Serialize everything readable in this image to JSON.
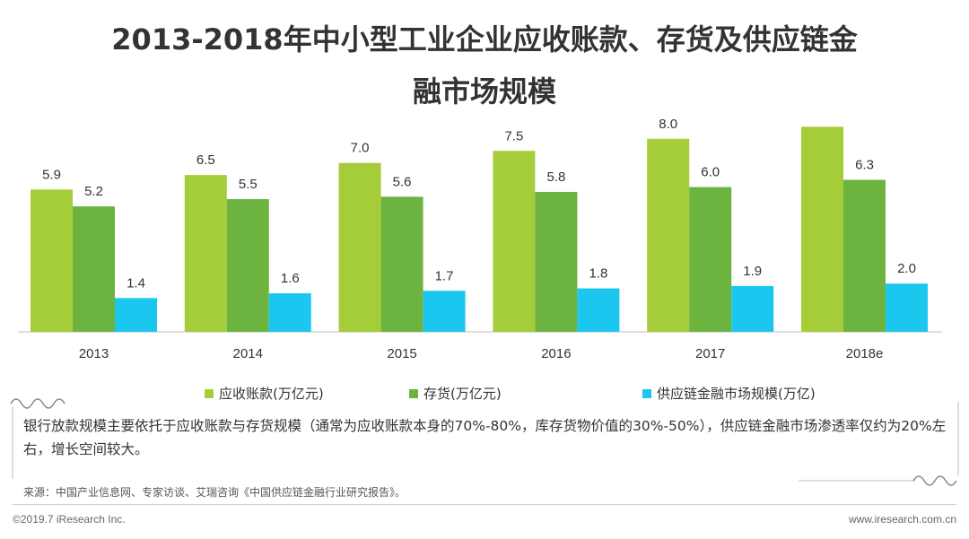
{
  "title_line1": "2013-2018年中小型工业企业应收账款、存货及供应链金",
  "title_line2": "融市场规模",
  "note": "银行放款规模主要依托于应收账款与存货规模（通常为应收账款本身的70%-80%，库存货物价值的30%-50%），供应链金融市场渗透率仅约为20%左右，增长空间较大。",
  "source": "来源：中国产业信息网、专家访谈、艾瑞咨询《中国供应链金融行业研究报告》。",
  "footer_left": "©2019.7 iResearch Inc.",
  "footer_right": "www.iresearch.com.cn",
  "colors": {
    "series1": "#a5cd39",
    "series2": "#6cb33f",
    "series3": "#1cc7ef",
    "decor": "#888888"
  },
  "chart_data": {
    "type": "bar",
    "categories": [
      "2013",
      "2014",
      "2015",
      "2016",
      "2017",
      "2018e"
    ],
    "series": [
      {
        "name": "应收账款(万亿元)",
        "values": [
          5.9,
          6.5,
          7.0,
          7.5,
          8.0,
          8.5
        ]
      },
      {
        "name": "存货(万亿元)",
        "values": [
          5.2,
          5.5,
          5.6,
          5.8,
          6.0,
          6.3
        ]
      },
      {
        "name": "供应链金融市场规模(万亿)",
        "values": [
          1.4,
          1.6,
          1.7,
          1.8,
          1.9,
          2.0
        ]
      }
    ],
    "value_labels": [
      [
        "5.9",
        "6.5",
        "7.0",
        "7.5",
        "8.0",
        "8.5"
      ],
      [
        "5.2",
        "5.5",
        "5.6",
        "5.8",
        "6.0",
        "6.3"
      ],
      [
        "1.4",
        "1.6",
        "1.7",
        "1.8",
        "1.9",
        "2.0"
      ]
    ],
    "ylim": [
      0,
      9
    ],
    "grid": false,
    "legend_position": "bottom"
  }
}
